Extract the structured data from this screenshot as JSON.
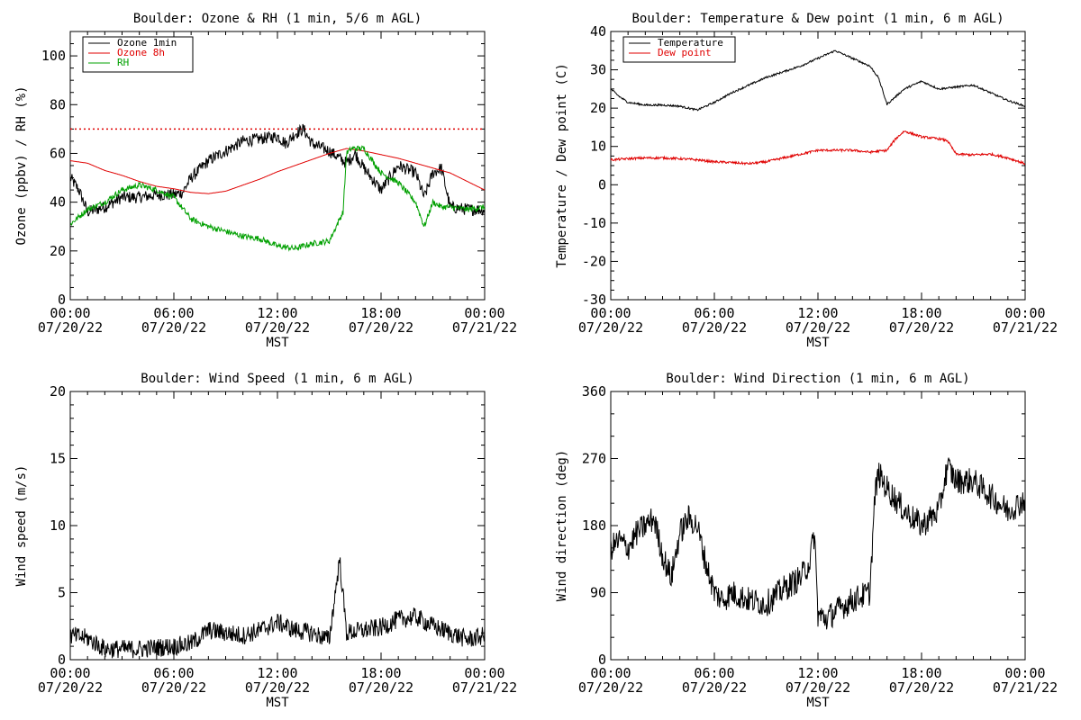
{
  "colors": {
    "black": "#000000",
    "red": "#e00000",
    "green": "#00a000"
  },
  "x_ticks": [
    "00:00\n07/20/22",
    "06:00\n07/20/22",
    "12:00\n07/20/22",
    "18:00\n07/20/22",
    "00:00\n07/21/22"
  ],
  "x_axis_label": "MST",
  "chart_data": [
    {
      "type": "line",
      "title": "Boulder: Ozone & RH (1 min, 5/6 m AGL)",
      "xlabel": "MST",
      "ylabel": "Ozone (ppbv) / RH (%)",
      "xlim_hours": [
        0,
        24
      ],
      "ylim": [
        0,
        110
      ],
      "y_ticks": [
        0,
        20,
        40,
        60,
        80,
        100
      ],
      "legend_position": "top-left",
      "reference_lines": [
        {
          "y": 70,
          "style": "dotted",
          "color": "#e00000"
        }
      ],
      "series": [
        {
          "name": "Ozone 1min",
          "color": "#000000",
          "noise": 2.5,
          "x": [
            0,
            0.5,
            1,
            2,
            3,
            4,
            5,
            6,
            6.5,
            7,
            8,
            9,
            10,
            11,
            12,
            12.5,
            13,
            13.5,
            14,
            15,
            16,
            16.5,
            17,
            18,
            19,
            20,
            20.5,
            21,
            21.5,
            22,
            23,
            24
          ],
          "y": [
            50,
            45,
            36,
            38,
            42,
            42,
            43,
            43,
            44,
            50,
            57,
            61,
            65,
            66,
            67,
            64,
            68,
            70,
            64,
            61,
            56,
            60,
            54,
            45,
            55,
            52,
            42,
            52,
            54,
            38,
            37,
            37
          ]
        },
        {
          "name": "Ozone 8h",
          "color": "#e00000",
          "noise": 0,
          "x": [
            0,
            1,
            2,
            3,
            4,
            5,
            6,
            7,
            8,
            9,
            10,
            11,
            12,
            13,
            14,
            15,
            16,
            17,
            18,
            19,
            20,
            21,
            22,
            23,
            24
          ],
          "y": [
            57,
            56,
            53,
            51,
            48.5,
            46.5,
            45.5,
            44,
            43.5,
            44.5,
            47,
            49.5,
            52.5,
            55,
            57.5,
            60,
            62,
            61,
            59.5,
            58,
            56,
            54,
            52,
            48.5,
            45
          ]
        },
        {
          "name": "RH",
          "color": "#00a000",
          "noise": 1.2,
          "x": [
            0,
            0.5,
            1,
            2,
            3,
            4,
            5,
            6,
            7,
            8,
            9,
            10,
            11,
            12,
            13,
            14,
            15,
            15.8,
            16,
            16.3,
            17,
            18,
            19,
            20,
            20.5,
            21,
            21.5,
            22,
            23,
            24
          ],
          "y": [
            31,
            34,
            37,
            40,
            45,
            47,
            45,
            42,
            33,
            30,
            28,
            26,
            25,
            22,
            21,
            23,
            24,
            36,
            60,
            62,
            62,
            52,
            48,
            40,
            30,
            40,
            38,
            38,
            37,
            38
          ]
        }
      ]
    },
    {
      "type": "line",
      "title": "Boulder: Temperature & Dew point (1 min, 6 m AGL)",
      "xlabel": "MST",
      "ylabel": "Temperature / Dew point (C)",
      "xlim_hours": [
        0,
        24
      ],
      "ylim": [
        -30,
        40
      ],
      "y_ticks": [
        -30,
        -20,
        -10,
        0,
        10,
        20,
        30,
        40
      ],
      "legend_position": "top-left",
      "series": [
        {
          "name": "Temperature",
          "color": "#000000",
          "noise": 0.25,
          "x": [
            0,
            0.5,
            1,
            2,
            3,
            4,
            5,
            6,
            7,
            8,
            9,
            10,
            11,
            12,
            13,
            14,
            15,
            15.5,
            16,
            17,
            18,
            19,
            20,
            21,
            22,
            23,
            24
          ],
          "y": [
            25,
            23,
            21.5,
            20.8,
            20.8,
            20.5,
            19.5,
            21.5,
            24,
            26,
            28,
            29.5,
            31,
            33,
            35,
            33,
            31,
            28,
            21,
            25,
            27,
            25,
            25.5,
            26,
            24,
            22,
            20.5
          ]
        },
        {
          "name": "Dew point",
          "color": "#e00000",
          "noise": 0.3,
          "x": [
            0,
            1,
            2,
            3,
            4,
            5,
            6,
            7,
            8,
            9,
            10,
            11,
            12,
            13,
            14,
            15,
            16,
            16.5,
            17,
            18,
            19,
            19.5,
            20,
            21,
            22,
            23,
            24
          ],
          "y": [
            6.5,
            6.8,
            7,
            7,
            6.8,
            6.5,
            6,
            5.8,
            5.5,
            6,
            7,
            8,
            9,
            9,
            9,
            8.5,
            9,
            12,
            14,
            12.5,
            12,
            11.5,
            8,
            7.8,
            8,
            7,
            5.5
          ]
        }
      ]
    },
    {
      "type": "line",
      "title": "Boulder: Wind Speed (1 min, 6 m AGL)",
      "xlabel": "MST",
      "ylabel": "Wind speed (m/s)",
      "xlim_hours": [
        0,
        24
      ],
      "ylim": [
        0,
        20
      ],
      "y_ticks": [
        0,
        5,
        10,
        15,
        20
      ],
      "series": [
        {
          "name": "",
          "color": "#000000",
          "noise": 0.7,
          "x": [
            0,
            1,
            2,
            3,
            4,
            5,
            6,
            7,
            8,
            9,
            10,
            11,
            12,
            13,
            14,
            15,
            15.6,
            16,
            17,
            18,
            19,
            20,
            21,
            22,
            23,
            24
          ],
          "y": [
            1.8,
            1.6,
            0.8,
            0.8,
            0.8,
            0.9,
            1.0,
            1.2,
            2.2,
            2.0,
            1.8,
            2.2,
            2.8,
            2.2,
            2.0,
            1.5,
            7.5,
            2.0,
            2.2,
            2.4,
            3.0,
            3.2,
            2.5,
            2.0,
            1.5,
            1.8
          ]
        }
      ]
    },
    {
      "type": "line",
      "title": "Boulder: Wind Direction (1 min, 6 m AGL)",
      "xlabel": "MST",
      "ylabel": "Wind direction (deg)",
      "xlim_hours": [
        0,
        24
      ],
      "ylim": [
        0,
        360
      ],
      "y_ticks": [
        0,
        90,
        180,
        270,
        360
      ],
      "series": [
        {
          "name": "",
          "color": "#000000",
          "noise": 18,
          "x": [
            0,
            0.5,
            1,
            1.5,
            2,
            2.5,
            3,
            3.5,
            4,
            4.5,
            5,
            5.5,
            6,
            6.5,
            7,
            8,
            9,
            10,
            11,
            11.5,
            11.8,
            12,
            12.5,
            13,
            14,
            15,
            15.3,
            15.5,
            16,
            17,
            18,
            19,
            19.5,
            20,
            21,
            22,
            23,
            24
          ],
          "y": [
            150,
            160,
            150,
            170,
            180,
            190,
            140,
            110,
            170,
            190,
            180,
            130,
            90,
            80,
            90,
            80,
            75,
            95,
            110,
            130,
            170,
            60,
            55,
            65,
            80,
            90,
            220,
            250,
            230,
            200,
            180,
            200,
            260,
            240,
            240,
            220,
            200,
            215
          ]
        }
      ]
    }
  ]
}
